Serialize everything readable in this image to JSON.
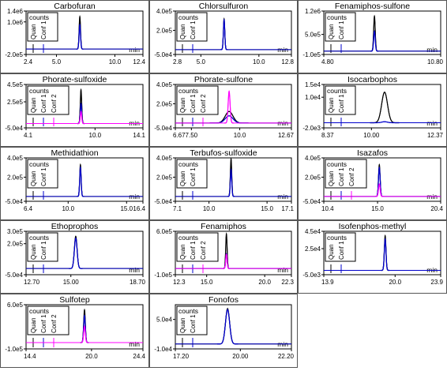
{
  "axis_unit": "min",
  "legend_heading": "counts",
  "colors": {
    "quan": "#000000",
    "conf1": "#0000cc",
    "conf2": "#ff00ff",
    "frame": "#555555"
  },
  "chart_data": [
    {
      "type": "line",
      "title": "Carbofuran",
      "y_ticks": [
        "1.4e6",
        "1.0e6",
        "-2.0e5"
      ],
      "y_tick_values": [
        1400000,
        1000000,
        -200000
      ],
      "ylim": [
        -200000,
        1400000
      ],
      "x_ticks": [
        "2.4",
        "5.0",
        "10.0",
        "12.4"
      ],
      "x_tick_values": [
        2.4,
        5.0,
        10.0,
        12.4
      ],
      "xlim": [
        2.4,
        12.4
      ],
      "legend": [
        "Quan",
        "Conf 1"
      ],
      "series": [
        {
          "name": "Quan",
          "color": "quan",
          "rt": 7.0,
          "width": 0.06,
          "height": 1200000
        },
        {
          "name": "Conf 1",
          "color": "conf1",
          "rt": 7.0,
          "width": 0.06,
          "height": 900000
        }
      ]
    },
    {
      "type": "line",
      "title": "Chlorsulfuron",
      "y_ticks": [
        "4.0e5",
        "2.0e5",
        "-5.0e4"
      ],
      "y_tick_values": [
        400000,
        200000,
        -50000
      ],
      "ylim": [
        -50000,
        400000
      ],
      "x_ticks": [
        "2.8",
        "5.0",
        "10.0",
        "12.8"
      ],
      "x_tick_values": [
        2.8,
        5.0,
        10.0,
        12.8
      ],
      "xlim": [
        2.8,
        12.8
      ],
      "legend": [
        "Quan",
        "Conf 1"
      ],
      "series": [
        {
          "name": "Quan",
          "color": "quan",
          "rt": 7.0,
          "width": 0.06,
          "height": 320000
        },
        {
          "name": "Conf 1",
          "color": "conf1",
          "rt": 7.0,
          "width": 0.06,
          "height": 310000
        }
      ]
    },
    {
      "type": "line",
      "title": "Fenamiphos-sulfone",
      "y_ticks": [
        "1.2e6",
        "5.0e5",
        "-1.0e5"
      ],
      "y_tick_values": [
        1200000,
        500000,
        -100000
      ],
      "ylim": [
        -100000,
        1200000
      ],
      "x_ticks": [
        "4.80",
        "10.80"
      ],
      "x_tick_values": [
        4.8,
        10.8
      ],
      "xlim": [
        4.8,
        10.8
      ],
      "legend": [
        "Quan",
        "Conf 1"
      ],
      "series": [
        {
          "name": "Quan",
          "color": "quan",
          "rt": 7.4,
          "width": 0.04,
          "height": 1050000
        },
        {
          "name": "Conf 1",
          "color": "conf1",
          "rt": 7.4,
          "width": 0.04,
          "height": 600000
        }
      ]
    },
    {
      "type": "line",
      "title": "Phorate-sulfoxide",
      "y_ticks": [
        "4.5e5",
        "2.5e5",
        "-5.0e4"
      ],
      "y_tick_values": [
        450000,
        250000,
        -50000
      ],
      "ylim": [
        -50000,
        450000
      ],
      "x_ticks": [
        "4.1",
        "10.0",
        "14.1"
      ],
      "x_tick_values": [
        4.1,
        10.0,
        14.1
      ],
      "xlim": [
        4.1,
        14.1
      ],
      "legend": [
        "Quan",
        "Conf 1",
        "Conf 2"
      ],
      "series": [
        {
          "name": "Quan",
          "color": "quan",
          "rt": 8.8,
          "width": 0.06,
          "height": 390000
        },
        {
          "name": "Conf 1",
          "color": "conf1",
          "rt": 8.8,
          "width": 0.06,
          "height": 230000
        },
        {
          "name": "Conf 2",
          "color": "conf2",
          "rt": 8.8,
          "width": 0.06,
          "height": 140000
        }
      ]
    },
    {
      "type": "line",
      "title": "Phorate-sulfone",
      "y_ticks": [
        "4.0e5",
        "2.0e5",
        "-5.0e4"
      ],
      "y_tick_values": [
        400000,
        200000,
        -50000
      ],
      "ylim": [
        -50000,
        400000
      ],
      "x_ticks": [
        "6.67",
        "7.50",
        "10.0",
        "12.67"
      ],
      "x_tick_values": [
        6.67,
        7.5,
        10.0,
        12.67
      ],
      "xlim": [
        6.67,
        12.67
      ],
      "legend": [
        "Quan",
        "Conf 1",
        "Conf 2"
      ],
      "series": [
        {
          "name": "Quan",
          "color": "quan",
          "rt": 9.45,
          "width": 0.2,
          "height": 120000
        },
        {
          "name": "Conf 1",
          "color": "conf1",
          "rt": 9.45,
          "width": 0.2,
          "height": 75000
        },
        {
          "name": "Conf 2",
          "color": "conf2",
          "rt": 9.45,
          "width": 0.05,
          "height": 330000
        }
      ]
    },
    {
      "type": "line",
      "title": "Isocarbophos",
      "y_ticks": [
        "1.5e4",
        "1.0e4",
        "-2.0e3"
      ],
      "y_tick_values": [
        15000,
        10000,
        -2000
      ],
      "ylim": [
        -2000,
        15000
      ],
      "x_ticks": [
        "8.37",
        "10.00",
        "12.37"
      ],
      "x_tick_values": [
        8.37,
        10.0,
        12.37
      ],
      "xlim": [
        8.37,
        12.37
      ],
      "legend": [
        "Quan",
        "Conf 1"
      ],
      "series": [
        {
          "name": "Quan",
          "color": "quan",
          "rt": 10.45,
          "width": 0.1,
          "height": 12000
        },
        {
          "name": "Conf 1",
          "color": "conf1",
          "rt": 10.45,
          "width": 0.1,
          "height": 400
        }
      ]
    },
    {
      "type": "line",
      "title": "Methidathion",
      "y_ticks": [
        "4.0e5",
        "2.0e5",
        "-5.0e4"
      ],
      "y_tick_values": [
        400000,
        200000,
        -50000
      ],
      "ylim": [
        -50000,
        400000
      ],
      "x_ticks": [
        "6.4",
        "10.0",
        "15.0",
        "16.4"
      ],
      "x_tick_values": [
        6.4,
        10.0,
        15.0,
        16.4
      ],
      "xlim": [
        6.4,
        16.4
      ],
      "legend": [
        "Quan",
        "Conf 1"
      ],
      "series": [
        {
          "name": "Quan",
          "color": "quan",
          "rt": 11.05,
          "width": 0.06,
          "height": 330000
        },
        {
          "name": "Conf 1",
          "color": "conf1",
          "rt": 11.05,
          "width": 0.06,
          "height": 300000
        }
      ]
    },
    {
      "type": "line",
      "title": "Terbufos-sulfoxide",
      "y_ticks": [
        "4.0e5",
        "2.0e5",
        "-5.0e4"
      ],
      "y_tick_values": [
        400000,
        200000,
        -50000
      ],
      "ylim": [
        -50000,
        400000
      ],
      "x_ticks": [
        "7.1",
        "10.0",
        "15.0",
        "17.1"
      ],
      "x_tick_values": [
        7.1,
        10.0,
        15.0,
        17.1
      ],
      "xlim": [
        7.1,
        17.1
      ],
      "legend": [
        "Quan",
        "Conf 1"
      ],
      "series": [
        {
          "name": "Quan",
          "color": "quan",
          "rt": 11.9,
          "width": 0.06,
          "height": 390000
        },
        {
          "name": "Conf 1",
          "color": "conf1",
          "rt": 11.9,
          "width": 0.06,
          "height": 280000
        }
      ]
    },
    {
      "type": "line",
      "title": "Isazafos",
      "y_ticks": [
        "4.0e5",
        "2.0e5",
        "-5.0e4"
      ],
      "y_tick_values": [
        400000,
        200000,
        -50000
      ],
      "ylim": [
        -50000,
        400000
      ],
      "x_ticks": [
        "10.4",
        "15.0",
        "20.4"
      ],
      "x_tick_values": [
        10.4,
        15.0,
        20.4
      ],
      "xlim": [
        10.4,
        20.4
      ],
      "legend": [
        "Quan",
        "Conf 1",
        "Conf 2"
      ],
      "series": [
        {
          "name": "Quan",
          "color": "quan",
          "rt": 15.15,
          "width": 0.07,
          "height": 330000
        },
        {
          "name": "Conf 1",
          "color": "conf1",
          "rt": 15.15,
          "width": 0.07,
          "height": 300000
        },
        {
          "name": "Conf 2",
          "color": "conf2",
          "rt": 15.15,
          "width": 0.07,
          "height": 130000
        }
      ]
    },
    {
      "type": "line",
      "title": "Ethoprophos",
      "y_ticks": [
        "3.0e5",
        "2.0e5",
        "-5.0e4"
      ],
      "y_tick_values": [
        300000,
        200000,
        -50000
      ],
      "ylim": [
        -50000,
        300000
      ],
      "x_ticks": [
        "12.70",
        "15.00",
        "18.70"
      ],
      "x_tick_values": [
        12.7,
        15.0,
        18.7
      ],
      "xlim": [
        12.7,
        18.7
      ],
      "legend": [
        "Quan",
        "Conf 1"
      ],
      "series": [
        {
          "name": "Quan",
          "color": "quan",
          "rt": 15.25,
          "width": 0.07,
          "height": 260000
        },
        {
          "name": "Conf 1",
          "color": "conf1",
          "rt": 15.25,
          "width": 0.07,
          "height": 245000
        }
      ]
    },
    {
      "type": "line",
      "title": "Fenamiphos",
      "y_ticks": [
        "6.0e5",
        "-1.0e5"
      ],
      "y_tick_values": [
        600000,
        -100000
      ],
      "ylim": [
        -100000,
        600000
      ],
      "x_ticks": [
        "12.3",
        "15.0",
        "20.0",
        "22.3"
      ],
      "x_tick_values": [
        12.3,
        15.0,
        20.0,
        22.3
      ],
      "xlim": [
        12.3,
        22.3
      ],
      "legend": [
        "Quan",
        "Conf 1",
        "Conf 2"
      ],
      "series": [
        {
          "name": "Quan",
          "color": "quan",
          "rt": 16.7,
          "width": 0.06,
          "height": 560000
        },
        {
          "name": "Conf 1",
          "color": "conf1",
          "rt": 16.7,
          "width": 0.06,
          "height": 240000
        },
        {
          "name": "Conf 2",
          "color": "conf2",
          "rt": 16.7,
          "width": 0.06,
          "height": 230000
        }
      ]
    },
    {
      "type": "line",
      "title": "Isofenphos-methyl",
      "y_ticks": [
        "4.5e4",
        "2.5e4",
        "-5.0e3"
      ],
      "y_tick_values": [
        45000,
        25000,
        -5000
      ],
      "ylim": [
        -5000,
        45000
      ],
      "x_ticks": [
        "13.9",
        "20.0",
        "23.9"
      ],
      "x_tick_values": [
        13.9,
        20.0,
        23.9
      ],
      "xlim": [
        13.9,
        23.9
      ],
      "legend": [
        "Quan",
        "Conf 1"
      ],
      "series": [
        {
          "name": "Quan",
          "color": "quan",
          "rt": 19.15,
          "width": 0.07,
          "height": 40000
        },
        {
          "name": "Conf 1",
          "color": "conf1",
          "rt": 19.15,
          "width": 0.07,
          "height": 36000
        }
      ]
    },
    {
      "type": "line",
      "title": "Sulfotep",
      "y_ticks": [
        "6.0e5",
        "-1.0e5"
      ],
      "y_tick_values": [
        600000,
        -100000
      ],
      "ylim": [
        -100000,
        600000
      ],
      "x_ticks": [
        "14.4",
        "20.0",
        "24.4"
      ],
      "x_tick_values": [
        14.4,
        20.0,
        24.4
      ],
      "xlim": [
        14.4,
        24.4
      ],
      "legend": [
        "Quan",
        "Conf 1",
        "Conf 2"
      ],
      "series": [
        {
          "name": "Quan",
          "color": "quan",
          "rt": 19.4,
          "width": 0.07,
          "height": 520000
        },
        {
          "name": "Conf 1",
          "color": "conf1",
          "rt": 19.4,
          "width": 0.07,
          "height": 430000
        },
        {
          "name": "Conf 2",
          "color": "conf2",
          "rt": 19.4,
          "width": 0.07,
          "height": 260000
        }
      ]
    },
    {
      "type": "line",
      "title": "Fonofos",
      "y_ticks": [
        "5.0e4",
        "-1.0e4"
      ],
      "y_tick_values": [
        50000,
        -10000
      ],
      "ylim": [
        -10000,
        80000
      ],
      "x_ticks": [
        "17.20",
        "20.00",
        "22.20"
      ],
      "x_tick_values": [
        17.2,
        20.0,
        22.2
      ],
      "xlim": [
        17.2,
        22.2
      ],
      "legend": [
        "Quan",
        "Conf 1"
      ],
      "series": [
        {
          "name": "Quan",
          "color": "quan",
          "rt": 19.45,
          "width": 0.09,
          "height": 72000
        },
        {
          "name": "Conf 1",
          "color": "conf1",
          "rt": 19.45,
          "width": 0.09,
          "height": 70000
        }
      ]
    }
  ]
}
